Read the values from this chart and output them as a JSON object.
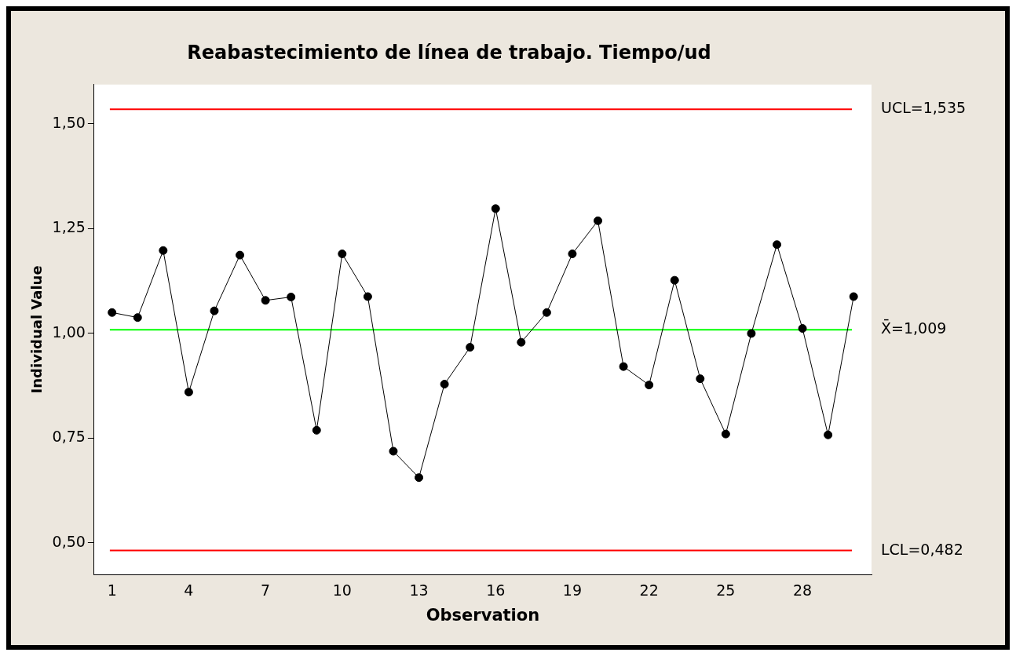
{
  "chart_data": {
    "type": "line",
    "title": "Reabastecimiento de línea de trabajo. Tiempo/ud",
    "xlabel": "Observation",
    "ylabel": "Individual Value",
    "x": [
      1,
      2,
      3,
      4,
      5,
      6,
      7,
      8,
      9,
      10,
      11,
      12,
      13,
      14,
      15,
      16,
      17,
      18,
      19,
      20,
      21,
      22,
      23,
      24,
      25,
      26,
      27,
      28,
      29,
      30
    ],
    "series": [
      {
        "color": "#000000",
        "values": [
          1.05,
          1.038,
          1.198,
          0.86,
          1.054,
          1.187,
          1.079,
          1.087,
          0.769,
          1.19,
          1.088,
          0.719,
          0.656,
          0.879,
          0.967,
          1.298,
          0.979,
          1.05,
          1.19,
          1.269,
          0.921,
          0.877,
          1.127,
          0.892,
          0.76,
          1.0,
          1.212,
          1.012,
          0.758,
          1.088
        ]
      }
    ],
    "xlim": [
      0.3,
      30.7
    ],
    "xticks": [
      1,
      4,
      7,
      10,
      13,
      16,
      19,
      22,
      25,
      28
    ],
    "ylim": [
      0.425,
      1.594
    ],
    "yticks": [
      {
        "value": 0.5,
        "label": "0,50"
      },
      {
        "value": 0.75,
        "label": "0,75"
      },
      {
        "value": 1.0,
        "label": "1,00"
      },
      {
        "value": 1.25,
        "label": "1,25"
      },
      {
        "value": 1.5,
        "label": "1,50"
      }
    ],
    "ref_lines": [
      {
        "axis": "y",
        "value": 1.535,
        "label": "UCL=1,535",
        "color": "#ff0000"
      },
      {
        "axis": "y",
        "value": 1.009,
        "label": "X̄=1,009",
        "color": "#00ff00"
      },
      {
        "axis": "y",
        "value": 0.482,
        "label": "LCL=0,482",
        "color": "#ff0000"
      }
    ],
    "grid": false,
    "legend": false,
    "marker": "circle",
    "line_style": "solid"
  }
}
